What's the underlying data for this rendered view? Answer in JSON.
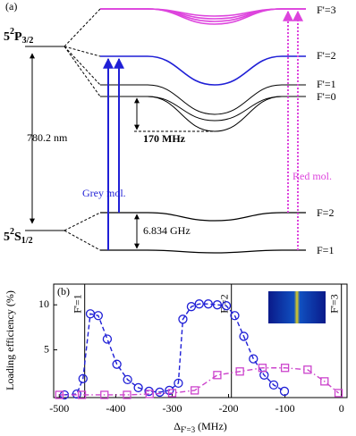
{
  "diagram": {
    "panel_label": "(a)",
    "excited_level": {
      "n": "5",
      "sup": "2",
      "letter": "P",
      "sub": "3/2"
    },
    "ground_level": {
      "n": "5",
      "sup": "2",
      "letter": "S",
      "sub": "1/2"
    },
    "wavelength": "780.2 nm",
    "shift": "170 MHz",
    "ground_splitting": "6.834 GHz",
    "grey_label": "Grey mol.",
    "red_label": "Red mol.",
    "states": [
      "F'=3",
      "F'=2",
      "F'=1",
      "F'=0",
      "F=2",
      "F=1"
    ]
  },
  "chart_data": {
    "type": "line",
    "panel_label": "(b)",
    "ylabel": "Loading efficiency (%)",
    "xlabel": {
      "symbol": "Δ",
      "sub": "F'=3",
      "unit": "(MHz)"
    },
    "xlim": [
      -510,
      10
    ],
    "xticks": [
      -500,
      -400,
      -300,
      -200,
      -100,
      0
    ],
    "ylim": [
      -0.3,
      12.3
    ],
    "yticks": [
      5,
      10
    ],
    "markers": [
      {
        "label": "F'=1",
        "x": -455
      },
      {
        "label": "F'=2",
        "x": -195
      },
      {
        "label": "F'=3",
        "x": 0
      }
    ],
    "series": [
      {
        "color": "#1f1fd6",
        "marker": "circle",
        "dash": "5,3",
        "x": [
          -491,
          -469,
          -458,
          -445,
          -431,
          -415,
          -398,
          -379,
          -360,
          -341,
          -322,
          -305,
          -289,
          -281,
          -266,
          -252,
          -236,
          -220,
          -204,
          -189,
          -173,
          -156,
          -137,
          -120,
          -101
        ],
        "values": [
          0.0,
          0.1,
          1.8,
          9.0,
          8.8,
          6.2,
          3.4,
          1.7,
          0.8,
          0.4,
          0.3,
          0.5,
          1.3,
          8.4,
          9.8,
          10.1,
          10.1,
          10.0,
          9.9,
          8.8,
          6.5,
          4.0,
          2.2,
          1.1,
          0.4
        ]
      },
      {
        "color": "#cc44cc",
        "marker": "square",
        "dash": "6,3,1.5,3",
        "x": [
          -500,
          -460,
          -420,
          -380,
          -340,
          -300,
          -260,
          -220,
          -180,
          -140,
          -100,
          -60,
          -30,
          -5
        ],
        "values": [
          0,
          0,
          0,
          0,
          0.1,
          0.2,
          0.5,
          2.2,
          2.6,
          3.0,
          3.0,
          2.8,
          1.5,
          0.2
        ]
      }
    ]
  }
}
